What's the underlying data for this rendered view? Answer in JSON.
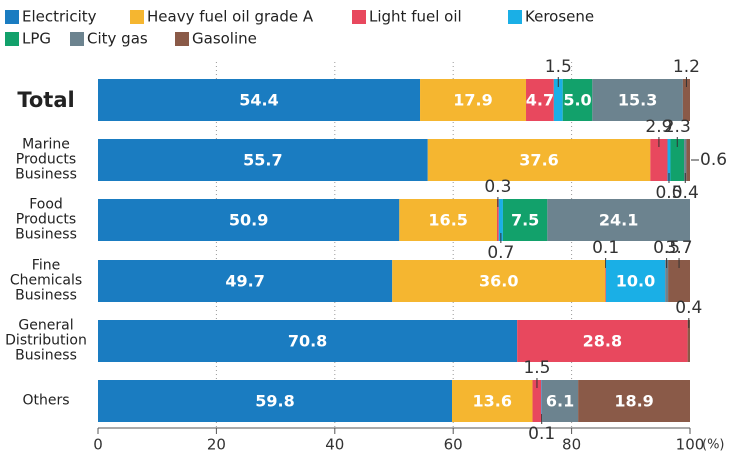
{
  "chart_data": {
    "type": "stacked-bar-horizontal",
    "categories": [
      "Total",
      "Marine Products Business",
      "Food Products Business",
      "Fine Chemicals Business",
      "General Distribution Business",
      "Others"
    ],
    "series": [
      {
        "name": "Electricity",
        "color": "#1a7cc1",
        "values": [
          54.4,
          55.7,
          50.9,
          49.7,
          70.8,
          59.8
        ],
        "value_labels": [
          "54.4",
          "55.7",
          "50.9",
          "49.7",
          "70.8",
          "59.8"
        ]
      },
      {
        "name": "Heavy fuel oil grade A",
        "color": "#f5b630",
        "values": [
          17.9,
          37.6,
          16.5,
          36.0,
          null,
          13.6
        ],
        "value_labels": [
          "17.9",
          "37.6",
          "16.5",
          "36.0",
          null,
          "13.6"
        ]
      },
      {
        "name": "Light fuel oil",
        "color": "#e8485e",
        "values": [
          4.7,
          2.9,
          0.3,
          0.1,
          28.8,
          1.5
        ],
        "value_labels": [
          "4.7",
          "2.9",
          "0.3",
          "0.1",
          "28.8",
          "1.5"
        ]
      },
      {
        "name": "Kerosene",
        "color": "#1aafe6",
        "values": [
          1.5,
          0.5,
          0.7,
          10.0,
          null,
          0.1
        ],
        "value_labels": [
          "1.5",
          "0.5",
          "0.7",
          "10.0",
          null,
          "0.1"
        ]
      },
      {
        "name": "LPG",
        "color": "#12a16b",
        "values": [
          5.0,
          2.3,
          7.5,
          null,
          null,
          null
        ],
        "value_labels": [
          "5.0",
          "2.3",
          "7.5",
          null,
          null,
          null
        ]
      },
      {
        "name": "City gas",
        "color": "#6c838f",
        "values": [
          15.3,
          0.4,
          24.1,
          0.5,
          null,
          6.1
        ],
        "value_labels": [
          "15.3",
          "0.4",
          "24.1",
          "0.5",
          null,
          "6.1"
        ]
      },
      {
        "name": "Gasoline",
        "color": "#8a5a48",
        "values": [
          1.2,
          0.6,
          null,
          3.7,
          0.4,
          18.9
        ],
        "value_labels": [
          "1.2",
          "0.6",
          null,
          "3.7",
          "0.4",
          "18.9"
        ]
      }
    ],
    "xlim": [
      0,
      100
    ],
    "xticks": [
      0,
      20,
      40,
      60,
      80,
      100
    ],
    "x_unit": "(%)",
    "grid": true
  }
}
